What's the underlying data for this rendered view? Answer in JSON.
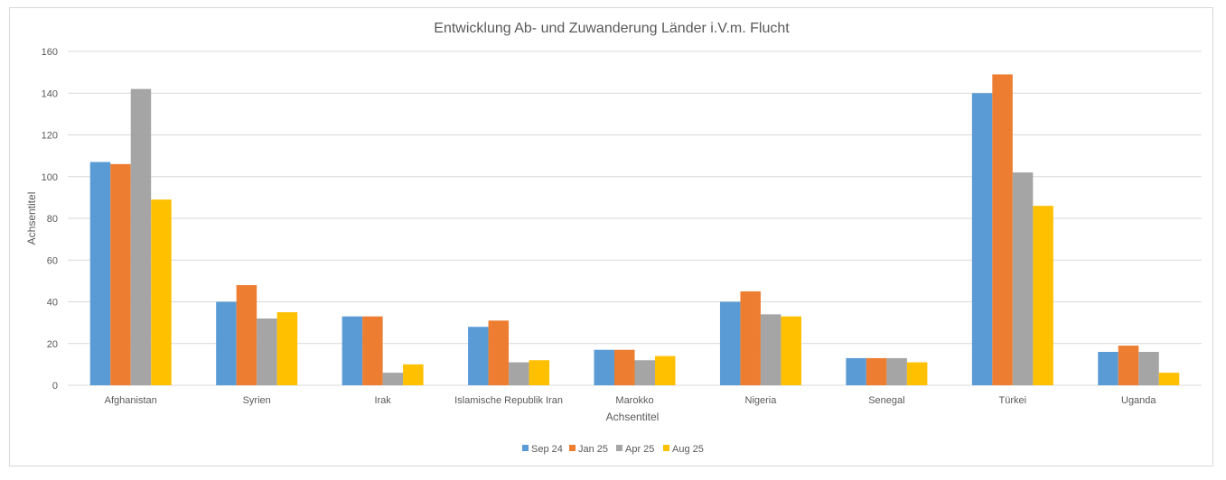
{
  "chart_data": {
    "type": "bar",
    "title": "Entwicklung Ab- und Zuwanderung Länder i.V.m. Flucht",
    "xlabel": "Achsentitel",
    "ylabel": "Achsentitel",
    "ylim": [
      0,
      160
    ],
    "yticks": [
      0,
      20,
      40,
      60,
      80,
      100,
      120,
      140,
      160
    ],
    "grid": true,
    "legend_position": "bottom",
    "categories": [
      "Afghanistan",
      "Syrien",
      "Irak",
      "Islamische Republik Iran",
      "Marokko",
      "Nigeria",
      "Senegal",
      "Türkei",
      "Uganda"
    ],
    "series": [
      {
        "name": "Sep 24",
        "color": "#5b9bd5",
        "values": [
          107,
          40,
          33,
          28,
          17,
          40,
          13,
          140,
          16
        ]
      },
      {
        "name": "Jan 25",
        "color": "#ed7d31",
        "values": [
          106,
          48,
          33,
          31,
          17,
          45,
          13,
          149,
          19
        ]
      },
      {
        "name": "Apr 25",
        "color": "#a5a5a5",
        "values": [
          142,
          32,
          6,
          11,
          12,
          34,
          13,
          102,
          16
        ]
      },
      {
        "name": "Aug 25",
        "color": "#ffc000",
        "values": [
          89,
          35,
          10,
          12,
          14,
          33,
          11,
          86,
          6
        ]
      }
    ]
  }
}
